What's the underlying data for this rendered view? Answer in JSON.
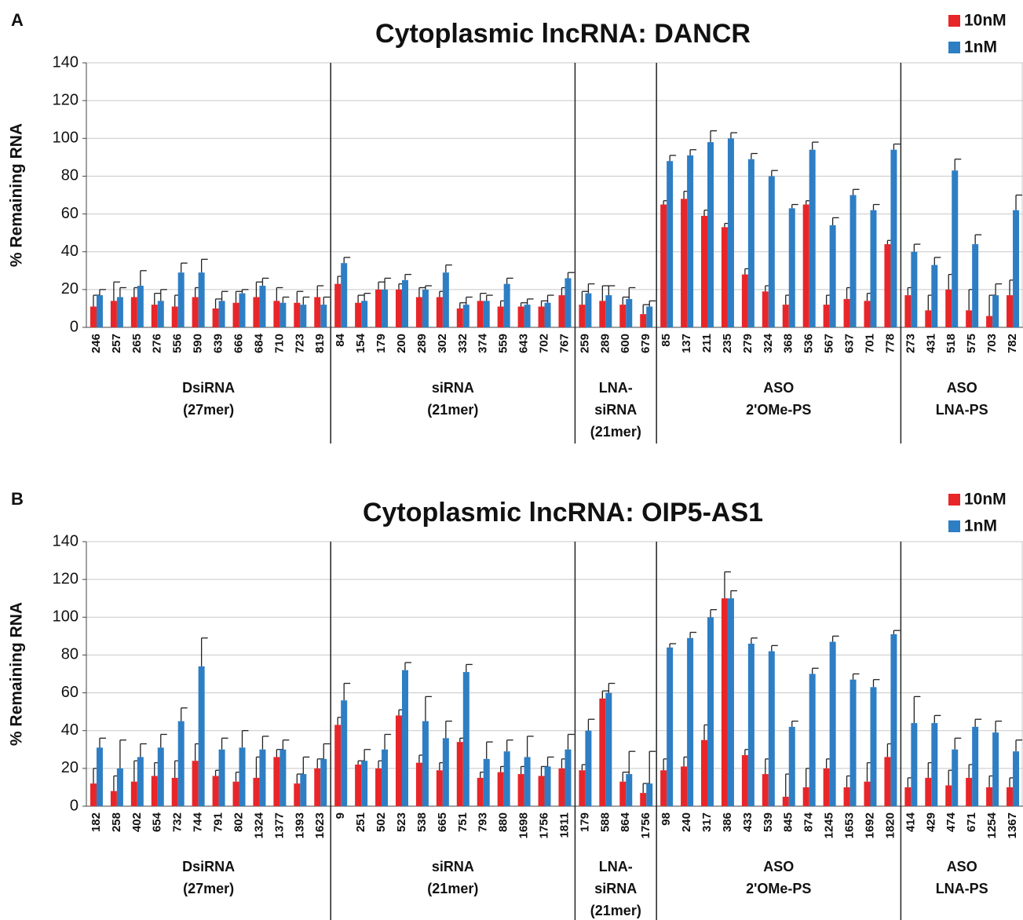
{
  "chart_data": [
    {
      "type": "bar",
      "panel_label": "A",
      "title": "Cytoplasmic lncRNA: DANCR",
      "ylabel": "% Remaining RNA",
      "ylim": [
        0,
        140
      ],
      "yticks": [
        0,
        20,
        40,
        60,
        80,
        100,
        120,
        140
      ],
      "grid": true,
      "legend": "top-right",
      "groups": [
        {
          "label": [
            "DsiRNA",
            "(27mer)"
          ],
          "categories": [
            "246",
            "257",
            "265",
            "276",
            "556",
            "590",
            "639",
            "666",
            "684",
            "710",
            "723",
            "819"
          ]
        },
        {
          "label": [
            "siRNA",
            "(21mer)"
          ],
          "categories": [
            "84",
            "154",
            "179",
            "200",
            "289",
            "302",
            "332",
            "374",
            "559",
            "643",
            "702",
            "767"
          ]
        },
        {
          "label": [
            "LNA-",
            "siRNA",
            "(21mer)"
          ],
          "categories": [
            "259",
            "289",
            "600",
            "679"
          ]
        },
        {
          "label": [
            "ASO",
            "2'OMe-PS"
          ],
          "categories": [
            "85",
            "137",
            "211",
            "235",
            "279",
            "324",
            "368",
            "536",
            "567",
            "637",
            "701",
            "778"
          ]
        },
        {
          "label": [
            "ASO",
            "LNA-PS"
          ],
          "categories": [
            "273",
            "431",
            "518",
            "575",
            "703",
            "782"
          ]
        }
      ],
      "series": [
        {
          "name": "10nM",
          "color": "#e8262a",
          "values": [
            11,
            14,
            16,
            12,
            11,
            16,
            10,
            13,
            16,
            14,
            13,
            16,
            23,
            13,
            20,
            20,
            16,
            16,
            10,
            14,
            11,
            11,
            11,
            17,
            12,
            14,
            12,
            7,
            65,
            68,
            59,
            53,
            28,
            19,
            12,
            65,
            12,
            15,
            14,
            44,
            17,
            9,
            20,
            9,
            6,
            17
          ],
          "errors": [
            6,
            10,
            5,
            6,
            6,
            5,
            5,
            6,
            8,
            7,
            6,
            6,
            4,
            4,
            4,
            3,
            5,
            3,
            3,
            4,
            3,
            2,
            3,
            4,
            7,
            8,
            4,
            5,
            2,
            4,
            3,
            2,
            3,
            3,
            5,
            2,
            5,
            6,
            4,
            2,
            4,
            8,
            8,
            11,
            11,
            8
          ]
        },
        {
          "name": "1nM",
          "color": "#2e7ec4",
          "values": [
            17,
            16,
            22,
            14,
            29,
            29,
            14,
            18,
            22,
            13,
            12,
            12,
            34,
            14,
            20,
            25,
            20,
            29,
            12,
            14,
            23,
            12,
            13,
            26,
            18,
            17,
            15,
            11,
            88,
            91,
            98,
            100,
            89,
            80,
            63,
            94,
            54,
            70,
            62,
            94,
            40,
            33,
            83,
            44,
            17,
            62
          ],
          "errors": [
            3,
            5,
            8,
            6,
            5,
            7,
            5,
            2,
            4,
            3,
            4,
            4,
            3,
            4,
            6,
            3,
            2,
            4,
            4,
            3,
            3,
            3,
            4,
            3,
            5,
            5,
            6,
            3,
            3,
            3,
            6,
            3,
            3,
            3,
            2,
            4,
            4,
            3,
            3,
            3,
            4,
            4,
            6,
            5,
            6,
            8
          ]
        }
      ]
    },
    {
      "type": "bar",
      "panel_label": "B",
      "title": "Cytoplasmic lncRNA: OIP5-AS1",
      "ylabel": "% Remaining RNA",
      "ylim": [
        0,
        140
      ],
      "yticks": [
        0,
        20,
        40,
        60,
        80,
        100,
        120,
        140
      ],
      "grid": true,
      "legend": "top-right",
      "groups": [
        {
          "label": [
            "DsiRNA",
            "(27mer)"
          ],
          "categories": [
            "182",
            "258",
            "402",
            "654",
            "732",
            "744",
            "791",
            "802",
            "1324",
            "1377",
            "1393",
            "1623"
          ]
        },
        {
          "label": [
            "siRNA",
            "(21mer)"
          ],
          "categories": [
            "9",
            "251",
            "502",
            "523",
            "538",
            "665",
            "751",
            "793",
            "880",
            "1698",
            "1756",
            "1811"
          ]
        },
        {
          "label": [
            "LNA-",
            "siRNA",
            "(21mer)"
          ],
          "categories": [
            "179",
            "588",
            "864",
            "1756"
          ]
        },
        {
          "label": [
            "ASO",
            "2'OMe-PS"
          ],
          "categories": [
            "98",
            "240",
            "317",
            "386",
            "433",
            "539",
            "845",
            "874",
            "1245",
            "1653",
            "1692",
            "1820"
          ]
        },
        {
          "label": [
            "ASO",
            "LNA-PS"
          ],
          "categories": [
            "414",
            "429",
            "474",
            "671",
            "1254",
            "1367"
          ]
        }
      ],
      "series": [
        {
          "name": "10nM",
          "color": "#e8262a",
          "values": [
            12,
            8,
            13,
            16,
            15,
            24,
            16,
            13,
            15,
            26,
            12,
            20,
            43,
            22,
            20,
            48,
            23,
            19,
            34,
            15,
            18,
            17,
            16,
            20,
            19,
            57,
            13,
            7,
            19,
            21,
            35,
            110,
            27,
            17,
            5,
            10,
            20,
            10,
            13,
            26,
            10,
            15,
            11,
            15,
            10,
            10
          ],
          "errors": [
            8,
            8,
            11,
            7,
            9,
            9,
            3,
            5,
            11,
            4,
            5,
            5,
            4,
            2,
            4,
            3,
            4,
            4,
            2,
            3,
            3,
            4,
            5,
            5,
            3,
            4,
            5,
            5,
            6,
            5,
            8,
            14,
            3,
            8,
            12,
            10,
            5,
            6,
            10,
            7,
            5,
            8,
            8,
            7,
            6,
            5
          ]
        },
        {
          "name": "1nM",
          "color": "#2e7ec4",
          "values": [
            31,
            20,
            26,
            31,
            45,
            74,
            30,
            31,
            30,
            30,
            17,
            25,
            56,
            24,
            30,
            72,
            45,
            36,
            71,
            25,
            29,
            26,
            21,
            30,
            40,
            60,
            17,
            12,
            84,
            89,
            100,
            110,
            86,
            82,
            42,
            70,
            87,
            67,
            63,
            91,
            44,
            44,
            30,
            42,
            39,
            29
          ],
          "errors": [
            5,
            15,
            7,
            7,
            7,
            15,
            6,
            9,
            7,
            5,
            9,
            8,
            9,
            6,
            8,
            4,
            13,
            9,
            4,
            9,
            6,
            11,
            5,
            8,
            6,
            5,
            12,
            17,
            2,
            3,
            4,
            4,
            3,
            3,
            3,
            3,
            3,
            3,
            4,
            2,
            14,
            4,
            6,
            4,
            6,
            6
          ]
        }
      ]
    }
  ]
}
